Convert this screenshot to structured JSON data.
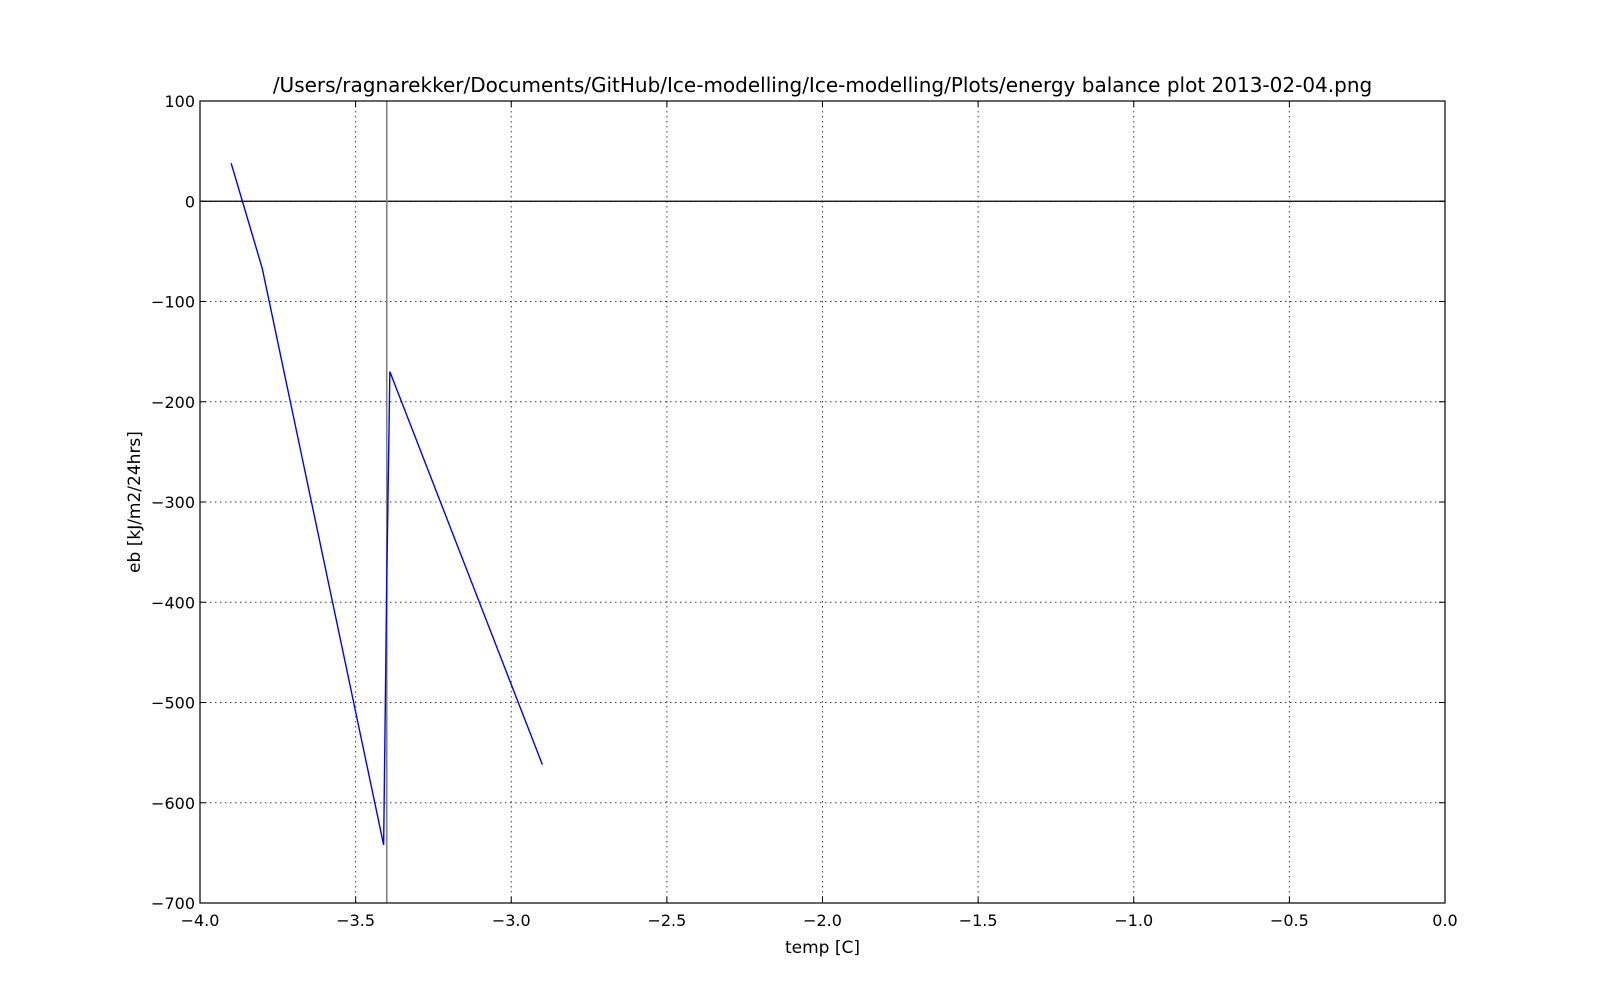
{
  "chart_data": {
    "type": "line",
    "title": "/Users/ragnarekker/Documents/GitHub/Ice-modelling/Ice-modelling/Plots/energy balance plot 2013-02-04.png",
    "xlabel": "temp [C]",
    "ylabel": "eb [kJ/m2/24hrs]",
    "xlim": [
      -4.0,
      0.0
    ],
    "ylim": [
      -700,
      100
    ],
    "xticks": [
      -4.0,
      -3.5,
      -3.0,
      -2.5,
      -2.0,
      -1.5,
      -1.0,
      -0.5,
      0.0
    ],
    "xtick_labels": [
      "−4.0",
      "−3.5",
      "−3.0",
      "−2.5",
      "−2.0",
      "−1.5",
      "−1.0",
      "−0.5",
      "0.0"
    ],
    "yticks": [
      100,
      0,
      -100,
      -200,
      -300,
      -400,
      -500,
      -600,
      -700
    ],
    "ytick_labels": [
      "100",
      "0",
      "−100",
      "−200",
      "−300",
      "−400",
      "−500",
      "−600",
      "−700"
    ],
    "grid": true,
    "series": [
      {
        "name": "energy balance",
        "color": "#0000ff",
        "x": [
          -3.9,
          -3.8,
          -3.41,
          -3.4,
          -3.39,
          -2.9
        ],
        "y": [
          38,
          -67,
          -642,
          -380,
          -170,
          -562
        ]
      }
    ],
    "reference_lines": [
      {
        "name": "zero-line",
        "orientation": "horizontal",
        "value": 0,
        "color": "#000000"
      },
      {
        "name": "vertical-marker",
        "orientation": "vertical",
        "value": -3.4,
        "color": "#808080"
      }
    ]
  }
}
